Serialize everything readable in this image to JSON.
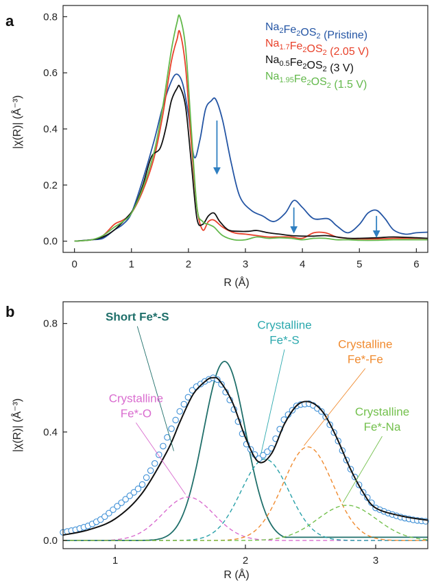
{
  "chart_data": [
    {
      "panel": "a",
      "type": "line",
      "xlabel": "R (Å)",
      "ylabel": "|χ(R)| (Å⁻³)",
      "xlim": [
        -0.2,
        6.2
      ],
      "ylim": [
        -0.04,
        0.84
      ],
      "xticks": [
        0,
        1,
        2,
        3,
        4,
        5,
        6
      ],
      "yticks": [
        0.0,
        0.2,
        0.4,
        0.6,
        0.8
      ],
      "legend_position": "top-right",
      "series": [
        {
          "legend": {
            "pre": "Na",
            "s1": "2",
            "mid": "Fe",
            "s2": "2",
            "post": "OS",
            "s3": "2",
            "tail": " (Pristine)"
          },
          "color": "#2455a4",
          "x": [
            0,
            0.3,
            0.5,
            0.7,
            0.85,
            1.0,
            1.2,
            1.4,
            1.55,
            1.7,
            1.8,
            1.9,
            2.0,
            2.1,
            2.2,
            2.3,
            2.4,
            2.48,
            2.6,
            2.75,
            2.9,
            3.1,
            3.3,
            3.5,
            3.7,
            3.85,
            4.0,
            4.2,
            4.45,
            4.6,
            4.8,
            5.0,
            5.15,
            5.3,
            5.45,
            5.6,
            5.8,
            6.0,
            6.2
          ],
          "y": [
            0.0,
            0.005,
            0.01,
            0.04,
            0.06,
            0.1,
            0.22,
            0.36,
            0.48,
            0.57,
            0.595,
            0.56,
            0.45,
            0.3,
            0.36,
            0.47,
            0.5,
            0.505,
            0.43,
            0.28,
            0.16,
            0.11,
            0.09,
            0.07,
            0.1,
            0.145,
            0.12,
            0.08,
            0.08,
            0.055,
            0.03,
            0.06,
            0.1,
            0.11,
            0.08,
            0.04,
            0.025,
            0.03,
            0.032
          ]
        },
        {
          "legend": {
            "pre": "Na",
            "s1": "1.7",
            "mid": "Fe",
            "s2": "2",
            "post": "OS",
            "s3": "2",
            "tail": " (2.05 V)"
          },
          "color": "#e8412a",
          "x": [
            0,
            0.3,
            0.5,
            0.7,
            0.85,
            1.0,
            1.2,
            1.4,
            1.55,
            1.7,
            1.8,
            1.85,
            1.95,
            2.05,
            2.15,
            2.25,
            2.35,
            2.45,
            2.6,
            2.8,
            3.0,
            3.2,
            3.4,
            3.6,
            3.8,
            4.0,
            4.2,
            4.4,
            4.6,
            4.8,
            5.0,
            5.3,
            5.6,
            6.0,
            6.2
          ],
          "y": [
            0.0,
            0.005,
            0.02,
            0.06,
            0.075,
            0.1,
            0.18,
            0.3,
            0.45,
            0.64,
            0.72,
            0.745,
            0.62,
            0.35,
            0.12,
            0.04,
            0.07,
            0.075,
            0.05,
            0.03,
            0.025,
            0.02,
            0.015,
            0.015,
            0.015,
            0.01,
            0.03,
            0.03,
            0.015,
            0.01,
            0.008,
            0.008,
            0.01,
            0.01,
            0.01
          ]
        },
        {
          "legend": {
            "pre": "Na",
            "s1": "0.5",
            "mid": "Fe",
            "s2": "2",
            "post": "OS",
            "s3": "2",
            "tail": " (3 V)"
          },
          "color": "#111111",
          "x": [
            0,
            0.3,
            0.5,
            0.7,
            0.9,
            1.05,
            1.2,
            1.35,
            1.5,
            1.6,
            1.7,
            1.8,
            1.85,
            1.95,
            2.05,
            2.15,
            2.25,
            2.35,
            2.45,
            2.55,
            2.7,
            2.9,
            3.05,
            3.2,
            3.4,
            3.6,
            3.8,
            4.0,
            4.2,
            4.4,
            4.6,
            4.8,
            5.0,
            5.3,
            5.6,
            6.0,
            6.2
          ],
          "y": [
            0.0,
            0.005,
            0.015,
            0.04,
            0.08,
            0.12,
            0.2,
            0.3,
            0.33,
            0.4,
            0.5,
            0.545,
            0.55,
            0.48,
            0.28,
            0.08,
            0.06,
            0.09,
            0.1,
            0.07,
            0.04,
            0.035,
            0.035,
            0.038,
            0.03,
            0.025,
            0.02,
            0.018,
            0.018,
            0.02,
            0.015,
            0.01,
            0.01,
            0.012,
            0.015,
            0.012,
            0.01
          ]
        },
        {
          "legend": {
            "pre": "Na",
            "s1": "1.95",
            "mid": "Fe",
            "s2": "2",
            "post": "OS",
            "s3": "2",
            "tail": " (1.5 V)"
          },
          "color": "#62b84a",
          "x": [
            0,
            0.3,
            0.5,
            0.7,
            0.85,
            1.0,
            1.2,
            1.4,
            1.55,
            1.7,
            1.8,
            1.85,
            1.95,
            2.05,
            2.15,
            2.25,
            2.35,
            2.45,
            2.6,
            2.8,
            3.0,
            3.2,
            3.4,
            3.6,
            3.8,
            4.0,
            4.2,
            4.4,
            4.6,
            4.8,
            5.0,
            5.3,
            5.6,
            6.0,
            6.2
          ],
          "y": [
            0.0,
            0.005,
            0.02,
            0.05,
            0.07,
            0.1,
            0.19,
            0.32,
            0.48,
            0.68,
            0.78,
            0.8,
            0.69,
            0.4,
            0.12,
            0.07,
            0.06,
            0.05,
            0.02,
            0.005,
            0.005,
            0.015,
            0.01,
            0.012,
            0.01,
            0.005,
            0.01,
            0.01,
            0.005,
            0.005,
            0.003,
            0.003,
            0.005,
            0.005,
            0.005
          ]
        }
      ],
      "annotations": [
        {
          "type": "arrow",
          "x": 2.5,
          "y_from": 0.43,
          "y_to": 0.25,
          "color": "#2f7fc1"
        },
        {
          "type": "arrow",
          "x": 3.85,
          "y_from": 0.12,
          "y_to": 0.04,
          "color": "#2f7fc1"
        },
        {
          "type": "arrow",
          "x": 5.3,
          "y_from": 0.09,
          "y_to": 0.025,
          "color": "#2f7fc1"
        }
      ]
    },
    {
      "panel": "b",
      "type": "line",
      "xlabel": "R (Å)",
      "ylabel": "|χ(R)| (Å⁻³)",
      "xlim": [
        0.6,
        3.4
      ],
      "ylim": [
        -0.03,
        0.88
      ],
      "xticks": [
        1,
        2,
        3
      ],
      "yticks": [
        0.0,
        0.4,
        0.8
      ],
      "experimental": {
        "color": "#3d8fd6",
        "x": [
          0.6,
          0.7,
          0.8,
          0.9,
          1.0,
          1.1,
          1.2,
          1.3,
          1.4,
          1.5,
          1.6,
          1.7,
          1.75,
          1.8,
          1.9,
          2.0,
          2.1,
          2.2,
          2.3,
          2.4,
          2.5,
          2.6,
          2.7,
          2.8,
          2.9,
          3.0,
          3.1,
          3.2,
          3.3,
          3.4
        ],
        "y": [
          0.03,
          0.04,
          0.055,
          0.08,
          0.12,
          0.16,
          0.2,
          0.28,
          0.38,
          0.48,
          0.56,
          0.59,
          0.6,
          0.59,
          0.5,
          0.36,
          0.3,
          0.34,
          0.45,
          0.5,
          0.505,
          0.47,
          0.38,
          0.27,
          0.18,
          0.12,
          0.1,
          0.085,
          0.075,
          0.07
        ]
      },
      "fit": {
        "color": "#111111",
        "x": [
          0.6,
          0.8,
          1.0,
          1.2,
          1.4,
          1.5,
          1.6,
          1.7,
          1.75,
          1.8,
          1.9,
          2.0,
          2.1,
          2.2,
          2.3,
          2.4,
          2.5,
          2.6,
          2.7,
          2.8,
          2.9,
          3.0,
          3.2,
          3.4
        ],
        "y": [
          0.02,
          0.04,
          0.08,
          0.17,
          0.33,
          0.44,
          0.54,
          0.59,
          0.6,
          0.59,
          0.51,
          0.38,
          0.29,
          0.32,
          0.43,
          0.5,
          0.51,
          0.47,
          0.38,
          0.27,
          0.18,
          0.12,
          0.09,
          0.075
        ]
      },
      "components": [
        {
          "label": "Short Fe*-S",
          "color": "#1f6f6a",
          "dashed": false,
          "center": 1.84,
          "height": 0.66,
          "width": 0.23,
          "tail": 0.012
        },
        {
          "label": "Crystalline Fe*-O",
          "color": "#d96ccf",
          "dashed": true,
          "center": 1.56,
          "height": 0.16,
          "width": 0.28,
          "tail": 0
        },
        {
          "label": "Crystalline Fe*-S",
          "color": "#27a0a8",
          "dashed": true,
          "center": 2.15,
          "height": 0.3,
          "width": 0.26,
          "tail": 0
        },
        {
          "label": "Crystalline Fe*-Fe",
          "color": "#f08a2e",
          "dashed": true,
          "center": 2.48,
          "height": 0.345,
          "width": 0.27,
          "tail": 0
        },
        {
          "label": "Crystalline Fe*-Na",
          "color": "#73c04c",
          "dashed": true,
          "center": 2.78,
          "height": 0.13,
          "width": 0.32,
          "tail": 0
        }
      ],
      "labels": [
        {
          "lines": [
            "Short Fe*-S"
          ],
          "color": "#1f6f6a",
          "bold": true,
          "x": 1.17,
          "y": 0.81,
          "leader_to": [
            1.45,
            0.33
          ]
        },
        {
          "lines": [
            "Crystalline",
            "Fe*-S"
          ],
          "color": "#2aa8ad",
          "bold": false,
          "x": 2.3,
          "y": 0.78,
          "leader_to": [
            2.12,
            0.32
          ]
        },
        {
          "lines": [
            "Crystalline",
            "Fe*-Fe"
          ],
          "color": "#f08a2e",
          "bold": false,
          "x": 2.92,
          "y": 0.71,
          "leader_to": [
            2.45,
            0.35
          ]
        },
        {
          "lines": [
            "Crystalline",
            "Fe*-O"
          ],
          "color": "#d96ccf",
          "bold": false,
          "x": 1.16,
          "y": 0.51,
          "leader_to": [
            1.54,
            0.17
          ]
        },
        {
          "lines": [
            "Crystalline",
            "Fe*-Na"
          ],
          "color": "#73c04c",
          "bold": false,
          "x": 3.05,
          "y": 0.46,
          "leader_to": [
            2.75,
            0.14
          ]
        }
      ]
    }
  ],
  "panel_labels": [
    "a",
    "b"
  ]
}
